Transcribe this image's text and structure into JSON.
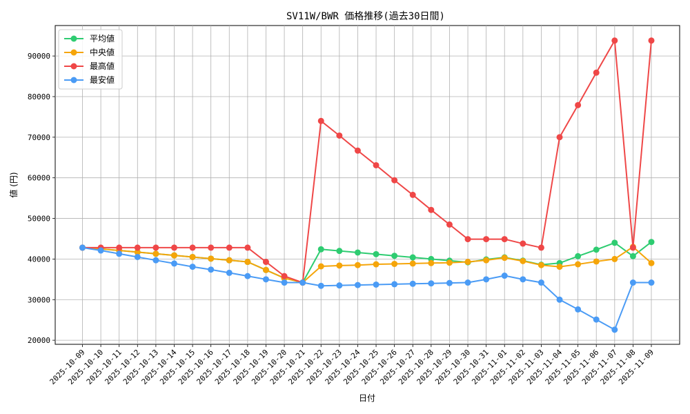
{
  "chart_data": {
    "type": "line",
    "title": "SV11W/BWR 価格推移(過去30日間)",
    "xlabel": "日付",
    "ylabel": "値 (円)",
    "ylim": [
      19000,
      97500
    ],
    "yticks": [
      20000,
      30000,
      40000,
      50000,
      60000,
      70000,
      80000,
      90000
    ],
    "grid": true,
    "legend_position": "top-left",
    "categories": [
      "2025-10-09",
      "2025-10-10",
      "2025-10-11",
      "2025-10-12",
      "2025-10-13",
      "2025-10-14",
      "2025-10-15",
      "2025-10-16",
      "2025-10-17",
      "2025-10-18",
      "2025-10-19",
      "2025-10-20",
      "2025-10-21",
      "2025-10-22",
      "2025-10-23",
      "2025-10-24",
      "2025-10-25",
      "2025-10-26",
      "2025-10-27",
      "2025-10-28",
      "2025-10-29",
      "2025-10-30",
      "2025-10-31",
      "2025-11-01",
      "2025-11-02",
      "2025-11-03",
      "2025-11-04",
      "2025-11-05",
      "2025-11-06",
      "2025-11-07",
      "2025-11-08",
      "2025-11-09"
    ],
    "series": [
      {
        "name": "平均値",
        "color": "#2ecc71",
        "values": [
          42800,
          42500,
          42100,
          41700,
          41300,
          40900,
          40500,
          40100,
          39700,
          39300,
          37300,
          35300,
          34200,
          42400,
          42000,
          41600,
          41200,
          40800,
          40400,
          40000,
          39600,
          39200,
          39900,
          40400,
          39600,
          38600,
          39000,
          40700,
          42300,
          44000,
          40700,
          44200
        ]
      },
      {
        "name": "中央値",
        "color": "#f5a50a",
        "values": [
          42800,
          42500,
          42100,
          41700,
          41300,
          40900,
          40500,
          40100,
          39700,
          39300,
          37300,
          35300,
          34200,
          38200,
          38400,
          38500,
          38700,
          38800,
          38900,
          39000,
          39100,
          39300,
          39700,
          40300,
          39500,
          38500,
          38100,
          38700,
          39400,
          40000,
          43000,
          39000
        ]
      },
      {
        "name": "最高値",
        "color": "#ef4747",
        "values": [
          42800,
          42800,
          42800,
          42800,
          42800,
          42800,
          42800,
          42800,
          42800,
          42800,
          39300,
          35800,
          34200,
          74000,
          70400,
          66700,
          63100,
          59400,
          55800,
          52100,
          48500,
          44900,
          44900,
          44900,
          43800,
          42800,
          70000,
          77900,
          85900,
          93800,
          42800,
          93800
        ]
      },
      {
        "name": "最安値",
        "color": "#4a9bf5",
        "values": [
          42800,
          42100,
          41300,
          40500,
          39700,
          38900,
          38100,
          37400,
          36600,
          35800,
          35000,
          34200,
          34200,
          33400,
          33500,
          33600,
          33700,
          33800,
          33900,
          34000,
          34100,
          34200,
          35000,
          35900,
          35000,
          34200,
          30000,
          27600,
          25100,
          22600,
          34200,
          34200
        ]
      }
    ]
  }
}
